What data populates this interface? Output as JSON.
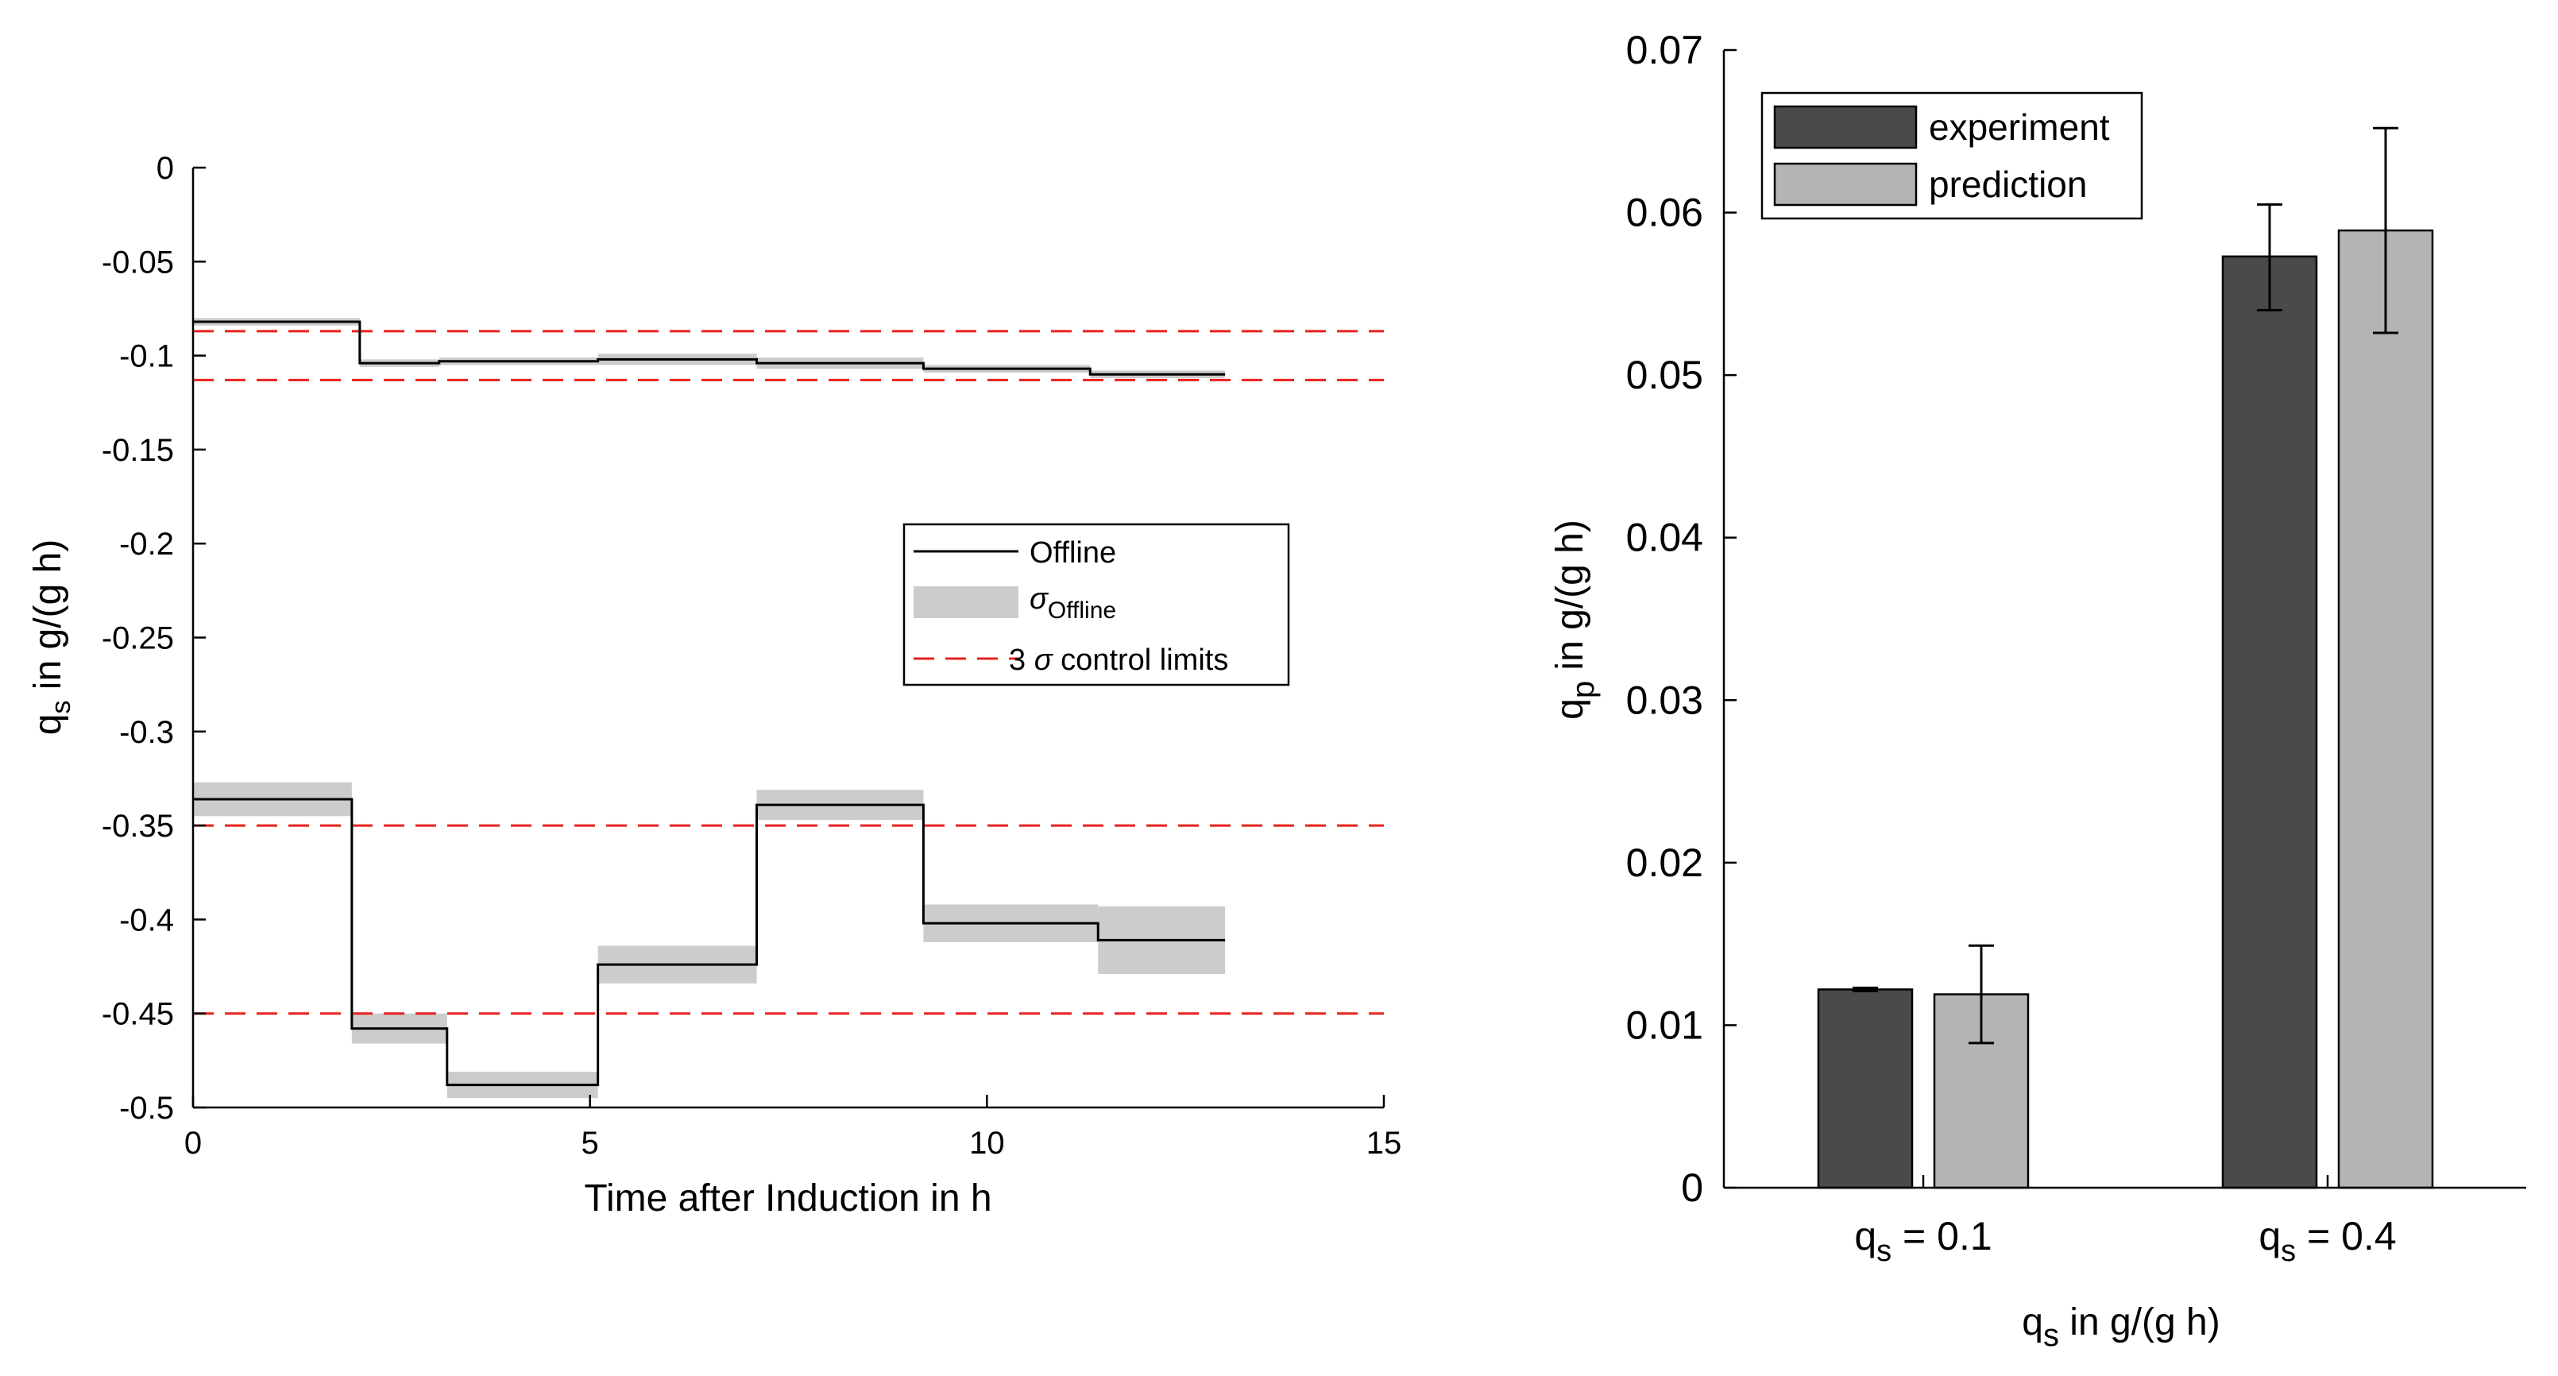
{
  "colors": {
    "offline_line": "#000000",
    "sigma_band": "#cccccc",
    "control_limits": "#e8221f",
    "experiment": "#4a4a4a",
    "prediction": "#b4b4b4"
  },
  "chart_data": [
    {
      "type": "line",
      "title": "",
      "xlabel": "Time after Induction in h",
      "ylabel_main": "q",
      "ylabel_sub": "s",
      "ylabel_rest": " in g/(g h)",
      "xlim": [
        0,
        15
      ],
      "ylim": [
        -0.5,
        0
      ],
      "xticks": [
        0,
        5,
        10,
        15
      ],
      "xtick_labels": [
        "0",
        "5",
        "10",
        "15"
      ],
      "yticks": [
        0,
        -0.05,
        -0.1,
        -0.15,
        -0.2,
        -0.25,
        -0.3,
        -0.35,
        -0.4,
        -0.45,
        -0.5
      ],
      "ytick_labels": [
        "0",
        "-0.05",
        "-0.1",
        "-0.15",
        "-0.2",
        "-0.25",
        "-0.3",
        "-0.35",
        "-0.4",
        "-0.45",
        "-0.5"
      ],
      "legend": {
        "position": "center-right",
        "offline": "Offline",
        "sigma_symbol": "σ",
        "sigma_sub": "Offline",
        "limits_prefix": "3 ",
        "limits_symbol": "σ",
        "limits_suffix": " control limits"
      },
      "series": [
        {
          "name": "Offline upper",
          "segments": [
            {
              "x0": 0,
              "x1": 2.1,
              "y": -0.082,
              "sigma": 0.002
            },
            {
              "x0": 2.1,
              "x1": 3.1,
              "y": -0.104,
              "sigma": 0.002
            },
            {
              "x0": 3.1,
              "x1": 5.1,
              "y": -0.103,
              "sigma": 0.002
            },
            {
              "x0": 5.1,
              "x1": 7.1,
              "y": -0.102,
              "sigma": 0.003
            },
            {
              "x0": 7.1,
              "x1": 9.2,
              "y": -0.104,
              "sigma": 0.003
            },
            {
              "x0": 9.2,
              "x1": 11.3,
              "y": -0.107,
              "sigma": 0.002
            },
            {
              "x0": 11.3,
              "x1": 13.0,
              "y": -0.11,
              "sigma": 0.002
            }
          ]
        },
        {
          "name": "Offline lower",
          "segments": [
            {
              "x0": 0,
              "x1": 2.0,
              "y": -0.336,
              "sigma": 0.009
            },
            {
              "x0": 2.0,
              "x1": 3.2,
              "y": -0.458,
              "sigma": 0.008
            },
            {
              "x0": 3.2,
              "x1": 5.1,
              "y": -0.488,
              "sigma": 0.007
            },
            {
              "x0": 5.1,
              "x1": 7.1,
              "y": -0.424,
              "sigma": 0.01
            },
            {
              "x0": 7.1,
              "x1": 9.2,
              "y": -0.339,
              "sigma": 0.008
            },
            {
              "x0": 9.2,
              "x1": 11.4,
              "y": -0.402,
              "sigma": 0.01
            },
            {
              "x0": 11.4,
              "x1": 13.0,
              "y": -0.411,
              "sigma": 0.018
            }
          ]
        }
      ],
      "control_limits": [
        -0.087,
        -0.113,
        -0.35,
        -0.45
      ]
    },
    {
      "type": "bar",
      "title": "",
      "xlabel_main": "q",
      "xlabel_sub": "s",
      "xlabel_rest": " in g/(g h)",
      "ylabel_main": "q",
      "ylabel_sub": "p",
      "ylabel_rest": " in g/(g h)",
      "ylim": [
        0,
        0.07
      ],
      "yticks": [
        0,
        0.01,
        0.02,
        0.03,
        0.04,
        0.05,
        0.06,
        0.07
      ],
      "ytick_labels": [
        "0",
        "0.01",
        "0.02",
        "0.03",
        "0.04",
        "0.05",
        "0.06",
        "0.07"
      ],
      "categories": [
        {
          "main": "q",
          "sub": "s",
          "rest": " = 0.1"
        },
        {
          "main": "q",
          "sub": "s",
          "rest": " = 0.4"
        }
      ],
      "legend": {
        "position": "top-left",
        "labels": [
          "experiment",
          "prediction"
        ]
      },
      "series": [
        {
          "name": "experiment",
          "values": [
            0.0122,
            0.0573
          ],
          "err_low": [
            0.0121,
            0.054
          ],
          "err_high": [
            0.0123,
            0.0605
          ]
        },
        {
          "name": "prediction",
          "values": [
            0.0119,
            0.0589
          ],
          "err_low": [
            0.0089,
            0.0526
          ],
          "err_high": [
            0.0149,
            0.0652
          ]
        }
      ]
    }
  ]
}
